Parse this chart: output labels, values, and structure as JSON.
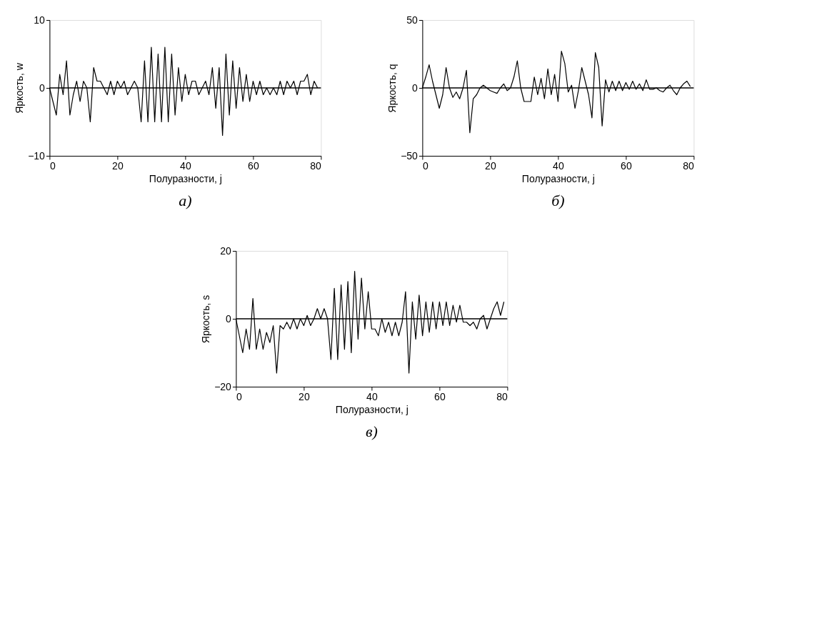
{
  "chart_data": [
    {
      "type": "line",
      "xlabel": "Полуразности, j",
      "ylabel": "Яркость, w",
      "annotations": [
        "а)"
      ],
      "x": [
        0,
        1,
        2,
        3,
        4,
        5,
        6,
        7,
        8,
        9,
        10,
        11,
        12,
        13,
        14,
        15,
        16,
        17,
        18,
        19,
        20,
        21,
        22,
        23,
        24,
        25,
        26,
        27,
        28,
        29,
        30,
        31,
        32,
        33,
        34,
        35,
        36,
        37,
        38,
        39,
        40,
        41,
        42,
        43,
        44,
        45,
        46,
        47,
        48,
        49,
        50,
        51,
        52,
        53,
        54,
        55,
        56,
        57,
        58,
        59,
        60,
        61,
        62,
        63,
        64,
        65,
        66,
        67,
        68,
        69,
        70,
        71,
        72,
        73,
        74,
        75,
        76,
        77,
        78,
        79
      ],
      "series": [
        {
          "color": "#000000",
          "values": [
            0,
            -2,
            -4,
            2,
            -1,
            4,
            -4,
            -1,
            1,
            -2,
            1,
            0,
            -5,
            3,
            1,
            1,
            0,
            -1,
            1,
            -1,
            1,
            0,
            1,
            -1,
            0,
            1,
            0,
            -5,
            4,
            -5,
            6,
            -5,
            5,
            -5,
            6,
            -5,
            5,
            -4,
            3,
            -2,
            2,
            -1,
            1,
            1,
            -1,
            0,
            1,
            -1,
            3,
            -3,
            3,
            -7,
            5,
            -4,
            4,
            -3,
            3,
            -2,
            2,
            -2,
            1,
            -1,
            1,
            -1,
            0,
            -1,
            0,
            -1,
            1,
            -1,
            1,
            0,
            1,
            -1,
            1,
            1,
            2,
            -1,
            1,
            0
          ]
        }
      ],
      "xlim": [
        0,
        80
      ],
      "xticks": [
        0,
        20,
        40,
        60,
        80
      ],
      "ylim": [
        -10,
        10
      ],
      "yticks": [
        -10,
        0,
        10
      ],
      "ref_lines": [
        {
          "axis": "y",
          "value": 0,
          "color": "#000000"
        }
      ]
    },
    {
      "type": "line",
      "xlabel": "Полуразности, j",
      "ylabel": "Яркость, q",
      "annotations": [
        "б)"
      ],
      "x": [
        0,
        1,
        2,
        3,
        4,
        5,
        6,
        7,
        8,
        9,
        10,
        11,
        12,
        13,
        14,
        15,
        16,
        17,
        18,
        19,
        20,
        21,
        22,
        23,
        24,
        25,
        26,
        27,
        28,
        29,
        30,
        31,
        32,
        33,
        34,
        35,
        36,
        37,
        38,
        39,
        40,
        41,
        42,
        43,
        44,
        45,
        46,
        47,
        48,
        49,
        50,
        51,
        52,
        53,
        54,
        55,
        56,
        57,
        58,
        59,
        60,
        61,
        62,
        63,
        64,
        65,
        66,
        67,
        68,
        69,
        70,
        71,
        72,
        73,
        74,
        75,
        76,
        77,
        78,
        79
      ],
      "series": [
        {
          "color": "#000000",
          "values": [
            0,
            8,
            17,
            5,
            -5,
            -15,
            -5,
            15,
            0,
            -7,
            -3,
            -8,
            0,
            13,
            -33,
            -8,
            -5,
            0,
            2,
            0,
            -2,
            -3,
            -4,
            0,
            3,
            -2,
            0,
            8,
            20,
            0,
            -10,
            -10,
            -10,
            8,
            -5,
            7,
            -8,
            14,
            -5,
            10,
            -10,
            27,
            18,
            -3,
            2,
            -15,
            -2,
            15,
            5,
            -5,
            -22,
            26,
            15,
            -28,
            6,
            -3,
            5,
            -2,
            5,
            -2,
            4,
            -1,
            5,
            -1,
            3,
            -2,
            6,
            -1,
            -1,
            0,
            -2,
            -3,
            0,
            2,
            -2,
            -5,
            0,
            3,
            5,
            1
          ]
        }
      ],
      "xlim": [
        0,
        80
      ],
      "xticks": [
        0,
        20,
        40,
        60,
        80
      ],
      "ylim": [
        -50,
        50
      ],
      "yticks": [
        -50,
        0,
        50
      ],
      "ref_lines": [
        {
          "axis": "y",
          "value": 0,
          "color": "#000000"
        }
      ]
    },
    {
      "type": "line",
      "xlabel": "Полуразности, j",
      "ylabel": "Яркость, s",
      "annotations": [
        "в)"
      ],
      "x": [
        0,
        1,
        2,
        3,
        4,
        5,
        6,
        7,
        8,
        9,
        10,
        11,
        12,
        13,
        14,
        15,
        16,
        17,
        18,
        19,
        20,
        21,
        22,
        23,
        24,
        25,
        26,
        27,
        28,
        29,
        30,
        31,
        32,
        33,
        34,
        35,
        36,
        37,
        38,
        39,
        40,
        41,
        42,
        43,
        44,
        45,
        46,
        47,
        48,
        49,
        50,
        51,
        52,
        53,
        54,
        55,
        56,
        57,
        58,
        59,
        60,
        61,
        62,
        63,
        64,
        65,
        66,
        67,
        68,
        69,
        70,
        71,
        72,
        73,
        74,
        75,
        76,
        77,
        78,
        79
      ],
      "series": [
        {
          "color": "#000000",
          "values": [
            0,
            -5,
            -10,
            -3,
            -9,
            6,
            -9,
            -3,
            -9,
            -4,
            -7,
            -2,
            -16,
            -2,
            -3,
            -1,
            -3,
            0,
            -3,
            0,
            -2,
            1,
            -2,
            0,
            3,
            0,
            3,
            0,
            -12,
            9,
            -12,
            10,
            -9,
            11,
            -10,
            14,
            -6,
            12,
            -3,
            8,
            -3,
            -3,
            -5,
            0,
            -4,
            -1,
            -5,
            -1,
            -5,
            -1,
            8,
            -16,
            5,
            -6,
            7,
            -5,
            5,
            -4,
            5,
            -3,
            5,
            -2,
            5,
            -2,
            4,
            -1,
            4,
            -1,
            -1,
            -2,
            -1,
            -3,
            0,
            1,
            -3,
            0,
            3,
            5,
            1,
            5
          ]
        }
      ],
      "xlim": [
        0,
        80
      ],
      "xticks": [
        0,
        20,
        40,
        60,
        80
      ],
      "ylim": [
        -20,
        20
      ],
      "yticks": [
        -20,
        0,
        20
      ],
      "ref_lines": [
        {
          "axis": "y",
          "value": 0,
          "color": "#000000"
        }
      ]
    }
  ]
}
